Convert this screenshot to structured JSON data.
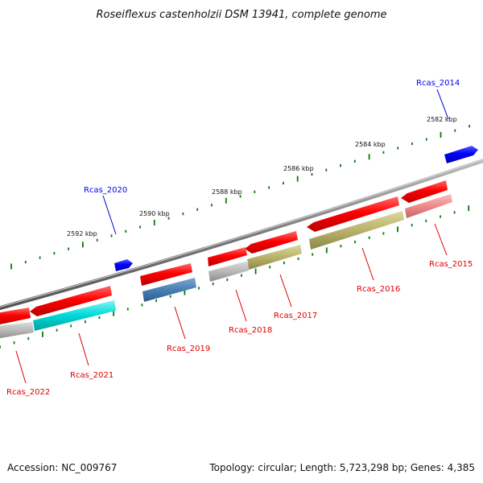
{
  "title": "Roseiflexus castenholzii DSM 13941, complete genome",
  "ticks": [
    "2582 kbp",
    "2584 kbp",
    "2586 kbp",
    "2588 kbp",
    "2590 kbp",
    "2592 kbp"
  ],
  "genes": [
    {
      "label": "Rcas_2014",
      "color": "#0000ee"
    },
    {
      "label": "Rcas_2015",
      "color": "#dd0000"
    },
    {
      "label": "Rcas_2016",
      "color": "#dd0000"
    },
    {
      "label": "Rcas_2017",
      "color": "#dd0000"
    },
    {
      "label": "Rcas_2018",
      "color": "#dd0000"
    },
    {
      "label": "Rcas_2019",
      "color": "#dd0000"
    },
    {
      "label": "Rcas_2020",
      "color": "#0000ee"
    },
    {
      "label": "Rcas_2021",
      "color": "#dd0000"
    },
    {
      "label": "Rcas_2022",
      "color": "#dd0000"
    }
  ],
  "footer": {
    "accession": "Accession: NC_009767",
    "summary": "Topology: circular; Length: 5,723,298 bp; Genes: 4,385"
  }
}
